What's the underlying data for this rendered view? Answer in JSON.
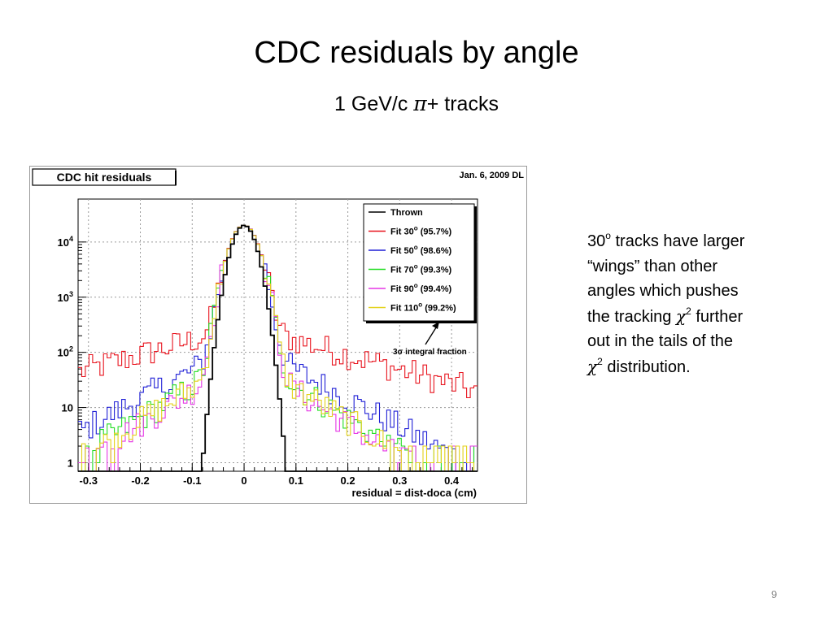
{
  "slide": {
    "title": "CDC residuals by angle",
    "subtitle_prefix": "1 GeV/c ",
    "subtitle_symbol": "π",
    "subtitle_suffix": "+ tracks",
    "page_number": "9"
  },
  "notes": {
    "line1_num": "30",
    "line1_sup": "o",
    "line1_text": " tracks have larger",
    "line2": "“wings” than other",
    "line3": "angles which pushes",
    "line4_text": "the tracking ",
    "line4_symbol": "χ",
    "line4_sup": "2",
    "line4_tail": " further",
    "line5": "out in the tails of the",
    "line6_symbol": "χ",
    "line6_sup": "2",
    "line6_text": " distribution."
  },
  "chart_data": {
    "type": "line",
    "title": "CDC hit residuals",
    "date_label": "Jan. 6, 2009 DL",
    "xlabel": "residual = dist-doca (cm)",
    "ylabel": "",
    "xlim": [
      -0.32,
      0.45
    ],
    "ylim": [
      0.7,
      60000
    ],
    "log_y": true,
    "grid": true,
    "x_ticks": [
      "-0.3",
      "-0.2",
      "-0.1",
      "0",
      "0.1",
      "0.2",
      "0.3",
      "0.4"
    ],
    "y_ticks": [
      {
        "base": "1",
        "exp": ""
      },
      {
        "base": "10",
        "exp": ""
      },
      {
        "base": "10",
        "exp": "2"
      },
      {
        "base": "10",
        "exp": "3"
      },
      {
        "base": "10",
        "exp": "4"
      }
    ],
    "legend_position": "top-right",
    "annotation": {
      "symbol": "3σ",
      "text": " integral fraction"
    },
    "peak_value": 20000,
    "series": [
      {
        "name": "Thrown",
        "label": "Thrown",
        "angle": "",
        "fraction": "",
        "color": "#000000",
        "sigma": 0.018,
        "tail_amp": 0,
        "tail_lambda": 1
      },
      {
        "name": "Fit 30",
        "label": "Fit  ",
        "angle": "30",
        "fraction": " (95.7%)",
        "color": "#e8141e",
        "sigma": 0.021,
        "tail_amp": 300,
        "tail_lambda": 0.165
      },
      {
        "name": "Fit 50",
        "label": "Fit  ",
        "angle": "50",
        "fraction": " (98.6%)",
        "color": "#1f1fd6",
        "sigma": 0.021,
        "tail_amp": 150,
        "tail_lambda": 0.085
      },
      {
        "name": "Fit 70",
        "label": "Fit  ",
        "angle": "70",
        "fraction": " (99.3%)",
        "color": "#22dd22",
        "sigma": 0.021,
        "tail_amp": 90,
        "tail_lambda": 0.075
      },
      {
        "name": "Fit 90",
        "label": "Fit  ",
        "angle": "90",
        "fraction": " (99.4%)",
        "color": "#e637e6",
        "sigma": 0.021,
        "tail_amp": 80,
        "tail_lambda": 0.072
      },
      {
        "name": "Fit 110",
        "label": "Fit ",
        "angle": "110",
        "fraction": " (99.2%)",
        "color": "#e3d21a",
        "sigma": 0.021,
        "tail_amp": 85,
        "tail_lambda": 0.074
      }
    ]
  },
  "colors": {
    "frame_border": "#9a9a9a",
    "title_box_border": "#000000",
    "grid": "#9a9a9a"
  }
}
